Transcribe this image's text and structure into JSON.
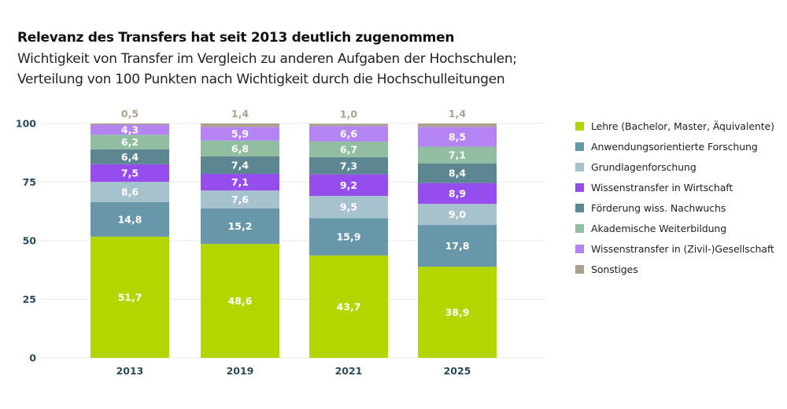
{
  "chart_data": {
    "type": "bar",
    "stacked": true,
    "title": "Relevanz des Transfers hat seit 2013 deutlich zugenommen",
    "subtitle": [
      "Wichtigkeit von Transfer im Vergleich zu anderen Aufgaben der Hochschulen;",
      "Verteilung von 100 Punkten nach Wichtigkeit durch die Hochschulleitungen"
    ],
    "xlabel": "",
    "ylabel": "",
    "ylim": [
      0,
      100
    ],
    "yticks": [
      0,
      25,
      50,
      75,
      100
    ],
    "grid": true,
    "legend_position": "right",
    "categories": [
      "2013",
      "2019",
      "2021",
      "2025"
    ],
    "series": [
      {
        "name": "Lehre (Bachelor, Master, Äquivalente)",
        "color": "#b3d600",
        "label_color": "#ffffff",
        "values": [
          51.7,
          48.6,
          43.7,
          38.9
        ],
        "labels": [
          "51,7",
          "48,6",
          "43,7",
          "38,9"
        ]
      },
      {
        "name": "Anwendungsorientierte Forschung",
        "color": "#6997aa",
        "label_color": "#ffffff",
        "values": [
          14.8,
          15.2,
          15.9,
          17.8
        ],
        "labels": [
          "14,8",
          "15,2",
          "15,9",
          "17,8"
        ]
      },
      {
        "name": "Grundlagenforschung",
        "color": "#a6c2cc",
        "label_color": "#ffffff",
        "values": [
          8.6,
          7.6,
          9.5,
          9.0
        ],
        "labels": [
          "8,6",
          "7,6",
          "9,5",
          "9,0"
        ]
      },
      {
        "name": "Wissenstransfer in Wirtschaft",
        "color": "#964ded",
        "label_color": "#ffffff",
        "values": [
          7.5,
          7.1,
          9.2,
          8.9
        ],
        "labels": [
          "7,5",
          "7,1",
          "9,2",
          "8,9"
        ]
      },
      {
        "name": "Förderung wiss. Nachwuchs",
        "color": "#5d8693",
        "label_color": "#ffffff",
        "values": [
          6.4,
          7.4,
          7.3,
          8.4
        ],
        "labels": [
          "6,4",
          "7,4",
          "7,3",
          "8,4"
        ]
      },
      {
        "name": "Akademische Weiterbildung",
        "color": "#91bea0",
        "label_color": "#ffffff",
        "values": [
          6.2,
          6.8,
          6.7,
          7.1
        ],
        "labels": [
          "6,2",
          "6,8",
          "6,7",
          "7,1"
        ]
      },
      {
        "name": "Wissenstransfer in (Zivil-)Gesellschaft",
        "color": "#b485f2",
        "label_color": "#ffffff",
        "values": [
          4.3,
          5.9,
          6.6,
          8.5
        ],
        "labels": [
          "4,3",
          "5,9",
          "6,6",
          "8,5"
        ]
      },
      {
        "name": "Sonstiges",
        "color": "#aaa28a",
        "label_color": "#aaa28a",
        "label_outside": true,
        "values": [
          0.5,
          1.4,
          1.0,
          1.4
        ],
        "labels": [
          "0,5",
          "1,4",
          "1,0",
          "1,4"
        ]
      }
    ],
    "colors": {
      "axis_text": "#2b4a5a",
      "grid": "#ebe8e2"
    }
  }
}
